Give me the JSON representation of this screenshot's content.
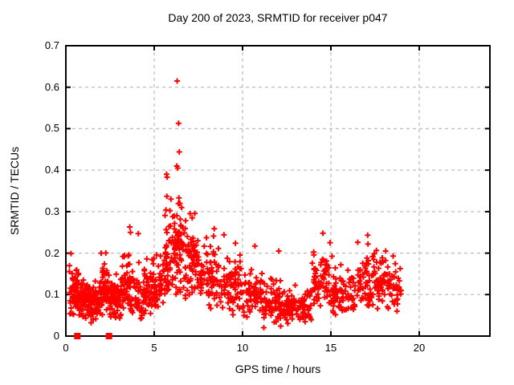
{
  "accent_color": "#ff0000",
  "chart_data": {
    "type": "scatter",
    "title": "Day 200 of 2023, SRMTID for receiver p047",
    "xlabel": "GPS time / hours",
    "ylabel": "SRMTID / TECUs",
    "xlim": [
      0,
      24
    ],
    "ylim": [
      0,
      0.7
    ],
    "xticks": [
      0,
      5,
      10,
      15,
      20
    ],
    "xtick_labels": [
      "0",
      "5",
      "10",
      "15",
      "20"
    ],
    "yticks": [
      0,
      0.1,
      0.2,
      0.3,
      0.4,
      0.5,
      0.6,
      0.7
    ],
    "ytick_labels": [
      "0",
      "0.1",
      "0.2",
      "0.3",
      "0.4",
      "0.5",
      "0.6",
      "0.7"
    ],
    "grid": true,
    "grid_style": "dashed",
    "grid_color": "#bebebe",
    "border_color": "#000000",
    "legend": "none",
    "background": "#ffffff",
    "series": [
      {
        "name": "SRMTID",
        "marker": "plus",
        "color": "#ff0000",
        "seed": 7,
        "outlier_points": [
          [
            0.29,
            0.199
          ],
          [
            2.0,
            0.2
          ],
          [
            3.62,
            0.263
          ],
          [
            3.66,
            0.25
          ],
          [
            4.1,
            0.247
          ],
          [
            5.67,
            0.304
          ],
          [
            5.7,
            0.39
          ],
          [
            5.73,
            0.383
          ],
          [
            5.72,
            0.337
          ],
          [
            5.95,
            0.33
          ],
          [
            6.05,
            0.288
          ],
          [
            6.28,
            0.41
          ],
          [
            6.3,
            0.615
          ],
          [
            6.33,
            0.405
          ],
          [
            6.38,
            0.513
          ],
          [
            6.4,
            0.333
          ],
          [
            6.42,
            0.444
          ],
          [
            6.45,
            0.32
          ],
          [
            6.55,
            0.31
          ],
          [
            7.03,
            0.295
          ],
          [
            7.15,
            0.285
          ],
          [
            8.4,
            0.259
          ],
          [
            8.95,
            0.244
          ],
          [
            9.6,
            0.224
          ],
          [
            10.7,
            0.217
          ],
          [
            12.05,
            0.205
          ],
          [
            14.55,
            0.248
          ],
          [
            14.95,
            0.225
          ],
          [
            17.08,
            0.243
          ],
          [
            17.1,
            0.222
          ],
          [
            18.1,
            0.205
          ]
        ],
        "band_segments": [
          {
            "x0": 0.2,
            "x1": 0.7,
            "n": 60,
            "mean": 0.1,
            "sd": 0.03,
            "min": 0.05,
            "max": 0.18
          },
          {
            "x0": 0.7,
            "x1": 1.3,
            "n": 70,
            "mean": 0.09,
            "sd": 0.025,
            "min": 0.04,
            "max": 0.16
          },
          {
            "x0": 1.3,
            "x1": 1.9,
            "n": 70,
            "mean": 0.08,
            "sd": 0.025,
            "min": 0.03,
            "max": 0.15
          },
          {
            "x0": 1.9,
            "x1": 2.4,
            "n": 60,
            "mean": 0.11,
            "sd": 0.035,
            "min": 0.05,
            "max": 0.21
          },
          {
            "x0": 2.4,
            "x1": 3.1,
            "n": 70,
            "mean": 0.09,
            "sd": 0.03,
            "min": 0.04,
            "max": 0.17
          },
          {
            "x0": 3.1,
            "x1": 3.9,
            "n": 70,
            "mean": 0.12,
            "sd": 0.04,
            "min": 0.05,
            "max": 0.26
          },
          {
            "x0": 3.9,
            "x1": 4.8,
            "n": 70,
            "mean": 0.1,
            "sd": 0.03,
            "min": 0.04,
            "max": 0.2
          },
          {
            "x0": 4.8,
            "x1": 5.6,
            "n": 60,
            "mean": 0.12,
            "sd": 0.035,
            "min": 0.06,
            "max": 0.24
          },
          {
            "x0": 5.6,
            "x1": 6.1,
            "n": 50,
            "mean": 0.17,
            "sd": 0.05,
            "min": 0.08,
            "max": 0.32
          },
          {
            "x0": 6.1,
            "x1": 6.7,
            "n": 60,
            "mean": 0.2,
            "sd": 0.05,
            "min": 0.1,
            "max": 0.32
          },
          {
            "x0": 6.7,
            "x1": 7.6,
            "n": 70,
            "mean": 0.18,
            "sd": 0.045,
            "min": 0.08,
            "max": 0.3
          },
          {
            "x0": 7.6,
            "x1": 8.7,
            "n": 70,
            "mean": 0.14,
            "sd": 0.04,
            "min": 0.06,
            "max": 0.26
          },
          {
            "x0": 8.7,
            "x1": 10.0,
            "n": 80,
            "mean": 0.12,
            "sd": 0.035,
            "min": 0.05,
            "max": 0.22
          },
          {
            "x0": 10.0,
            "x1": 11.2,
            "n": 70,
            "mean": 0.1,
            "sd": 0.03,
            "min": 0.03,
            "max": 0.19
          },
          {
            "x0": 11.2,
            "x1": 12.4,
            "n": 80,
            "mean": 0.075,
            "sd": 0.025,
            "min": 0.02,
            "max": 0.14
          },
          {
            "x0": 12.4,
            "x1": 13.9,
            "n": 90,
            "mean": 0.07,
            "sd": 0.022,
            "min": 0.03,
            "max": 0.13
          },
          {
            "x0": 13.9,
            "x1": 15.1,
            "n": 70,
            "mean": 0.13,
            "sd": 0.04,
            "min": 0.06,
            "max": 0.25
          },
          {
            "x0": 15.1,
            "x1": 16.4,
            "n": 70,
            "mean": 0.1,
            "sd": 0.03,
            "min": 0.05,
            "max": 0.19
          },
          {
            "x0": 16.4,
            "x1": 17.6,
            "n": 70,
            "mean": 0.13,
            "sd": 0.04,
            "min": 0.06,
            "max": 0.24
          },
          {
            "x0": 17.6,
            "x1": 19.0,
            "n": 80,
            "mean": 0.12,
            "sd": 0.035,
            "min": 0.05,
            "max": 0.2
          }
        ]
      },
      {
        "name": "flags",
        "marker": "filled-square",
        "color": "#ff0000",
        "points": [
          [
            0.65,
            0.0
          ],
          [
            2.44,
            0.0
          ]
        ]
      }
    ],
    "description": "Dense scatter of red plus markers, SRMTID vs GPS time; band mostly 0.05-0.2 TECUs from 0.2 to 19 h, spike cluster near 6.3 h up to 0.615, quiet zone 11-14 h, no data after 19 h; two filled red squares on the x-axis at 0.65 h and 2.44 h."
  }
}
